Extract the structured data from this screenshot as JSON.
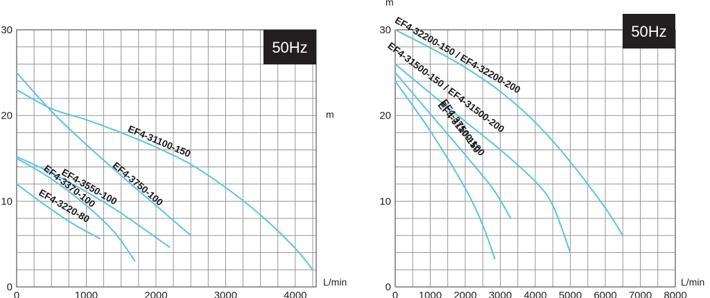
{
  "chart_data": [
    {
      "type": "line",
      "frequency_badge": "50Hz",
      "x_unit": "L/min",
      "y_unit": "m",
      "xlim": [
        0,
        4300
      ],
      "ylim": [
        0,
        30
      ],
      "x_ticks": [
        "0",
        "1000",
        "2000",
        "3000",
        "4000"
      ],
      "y_ticks": [
        "0",
        "10",
        "20",
        "30"
      ],
      "grid": true,
      "series": [
        {
          "name": "EF4-31100-150",
          "x": [
            0,
            500,
            1000,
            1500,
            2000,
            2500,
            3000,
            3500,
            4000,
            4250
          ],
          "y": [
            23,
            20.8,
            19.5,
            18.0,
            16.3,
            14.3,
            11.6,
            8.4,
            4.5,
            2.0
          ]
        },
        {
          "name": "EF4-3750-100",
          "x": [
            0,
            500,
            1000,
            1500,
            2000,
            2500
          ],
          "y": [
            25,
            20.5,
            16.6,
            13.0,
            9.5,
            6.0
          ]
        },
        {
          "name": "EF4-3550-100",
          "x": [
            0,
            500,
            1000,
            1500,
            2200
          ],
          "y": [
            15.2,
            13.3,
            11.1,
            8.6,
            4.6
          ]
        },
        {
          "name": "EF4-3370-100",
          "x": [
            0,
            500,
            1000,
            1400,
            1700
          ],
          "y": [
            15.0,
            12.6,
            9.5,
            6.4,
            3.0
          ]
        },
        {
          "name": "EF4-3220-80",
          "x": [
            0,
            400,
            800,
            1200
          ],
          "y": [
            12.0,
            9.6,
            7.4,
            5.6
          ]
        }
      ]
    },
    {
      "type": "line",
      "frequency_badge": "50Hz",
      "x_unit": "L/min",
      "y_unit": "m",
      "xlim": [
        0,
        8000
      ],
      "ylim": [
        0,
        30
      ],
      "x_ticks": [
        "0",
        "1000",
        "2000",
        "3000",
        "4000",
        "5000",
        "6000",
        "7000",
        "8000"
      ],
      "y_ticks": [
        "0",
        "10",
        "20",
        "30"
      ],
      "grid": true,
      "series": [
        {
          "name": "EF4-32200-150 / EF4-32200-200",
          "x": [
            0,
            1000,
            2000,
            3000,
            4000,
            5000,
            6000,
            6500
          ],
          "y": [
            30,
            27.9,
            25.6,
            22.8,
            19.2,
            14.6,
            9.2,
            6.0
          ]
        },
        {
          "name": "EF4-31500-150 / EF4-31500-200",
          "x": [
            0,
            1000,
            2000,
            3000,
            4000,
            4500,
            5000
          ],
          "y": [
            26,
            22.6,
            19.3,
            16.0,
            12.3,
            9.5,
            4.0
          ]
        },
        {
          "name": "EF4-31100-100",
          "x": [
            0,
            1000,
            2000,
            2800,
            3300
          ],
          "y": [
            25,
            20.2,
            15.4,
            11.4,
            8.0
          ]
        },
        {
          "name": "EF4-3750-150",
          "x": [
            0,
            1000,
            2000,
            2500,
            2850
          ],
          "y": [
            24,
            18.2,
            11.5,
            7.2,
            3.2
          ]
        }
      ]
    }
  ]
}
